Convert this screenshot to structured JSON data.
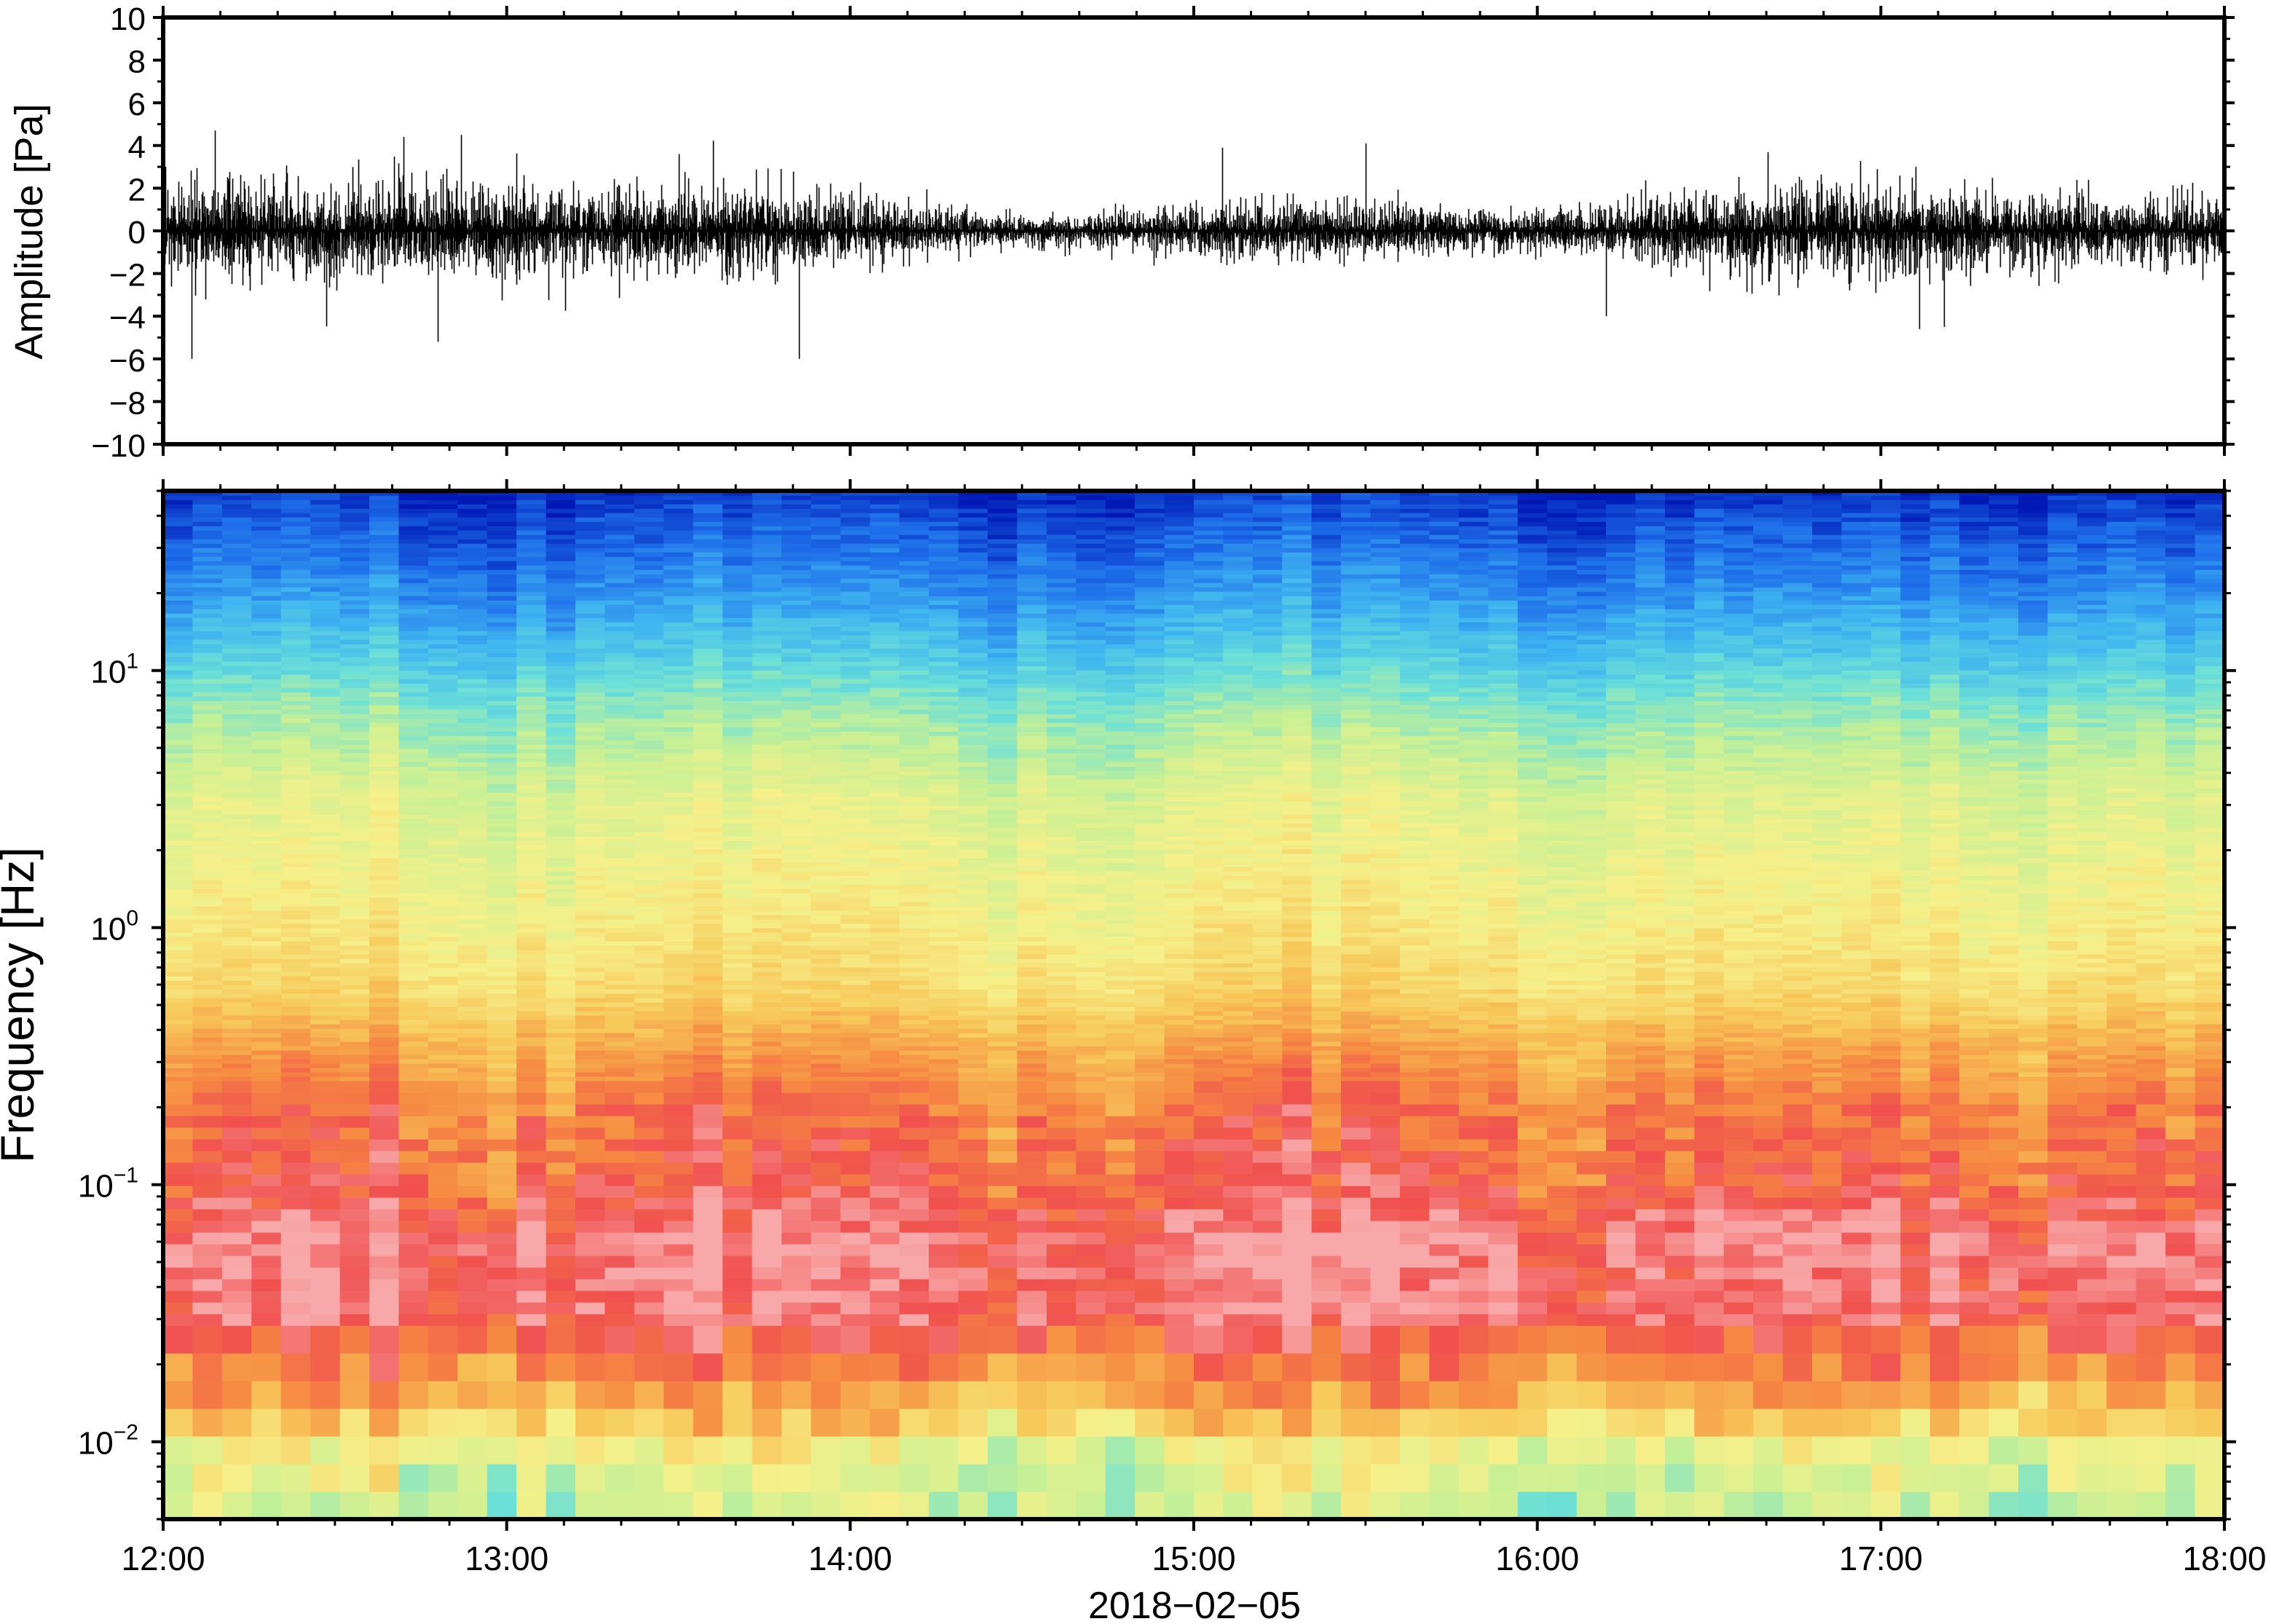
{
  "chart_data": [
    {
      "type": "line",
      "panel": "waveform",
      "ylabel": "Amplitude [Pa]",
      "ylim": [
        -10,
        10
      ],
      "yticks": [
        10,
        8,
        6,
        4,
        2,
        0,
        -2,
        -4,
        -6,
        -8,
        -10
      ],
      "ytick_labels": [
        "10",
        "8",
        "6",
        "4",
        "2",
        "0",
        "−2",
        "−4",
        "−6",
        "−8",
        "−10"
      ],
      "x_range": [
        "2018-02-05T12:00",
        "2018-02-05T18:00"
      ],
      "series": [
        {
          "values_summary": "dense infrasound trace centered on 0 Pa, typical envelope about ±2 Pa",
          "peaks": [
            {
              "time": "2018-02-05T12:05",
              "value": -6
            },
            {
              "time": "2018-02-05T12:09",
              "value": 4.7
            },
            {
              "time": "2018-02-05T12:42",
              "value": 4.4
            },
            {
              "time": "2018-02-05T12:48",
              "value": -5.2
            },
            {
              "time": "2018-02-05T12:52",
              "value": 4.5
            },
            {
              "time": "2018-02-05T13:30",
              "value": 3.6
            },
            {
              "time": "2018-02-05T13:51",
              "value": -6
            },
            {
              "time": "2018-02-05T15:05",
              "value": 3.9
            },
            {
              "time": "2018-02-05T15:30",
              "value": 4.1
            },
            {
              "time": "2018-02-05T16:12",
              "value": -4
            },
            {
              "time": "2018-02-05T17:06",
              "value": 3
            },
            {
              "time": "2018-02-05T17:11",
              "value": -4.5
            }
          ]
        }
      ]
    },
    {
      "type": "heatmap",
      "panel": "spectrogram",
      "ylabel": "Frequency [Hz]",
      "yscale": "log",
      "ylim": [
        0.005,
        50
      ],
      "yticks": [
        10,
        1,
        0.1,
        0.01
      ],
      "ytick_labels": [
        {
          "base": "10",
          "exp": "1"
        },
        {
          "base": "10",
          "exp": "0"
        },
        {
          "base": "10",
          "exp": "−1"
        },
        {
          "base": "10",
          "exp": "−2"
        }
      ],
      "xlabel": "2018−02−05",
      "categories": [
        "12:00",
        "13:00",
        "14:00",
        "15:00",
        "16:00",
        "17:00",
        "18:00"
      ],
      "x": [
        "2018-02-05T12:00",
        "2018-02-05T13:00",
        "2018-02-05T14:00",
        "2018-02-05T15:00",
        "2018-02-05T16:00",
        "2018-02-05T17:00",
        "2018-02-05T18:00"
      ],
      "colormap": [
        "#0018b4",
        "#1e6eea",
        "#3fb4f0",
        "#6be0d8",
        "#c8f094",
        "#f6f08a",
        "#f7c85a",
        "#f68c42",
        "#f0504e",
        "#f8a8a8"
      ],
      "color_band_summary": [
        {
          "freq_hz": [
            20,
            50
          ],
          "level": "lowest power (dark blue)"
        },
        {
          "freq_hz": [
            7,
            20
          ],
          "level": "low power (blue to cyan)"
        },
        {
          "freq_hz": [
            1,
            7
          ],
          "level": "medium (green-yellow)"
        },
        {
          "freq_hz": [
            0.3,
            1
          ],
          "level": "medium-high (yellow to orange)"
        },
        {
          "freq_hz": [
            0.1,
            0.3
          ],
          "level": "high (red)"
        },
        {
          "freq_hz": [
            0.025,
            0.1
          ],
          "level": "highest (pink)"
        },
        {
          "freq_hz": [
            0.012,
            0.025
          ],
          "level": "high (red-orange)"
        },
        {
          "freq_hz": [
            0.005,
            0.012
          ],
          "level": "medium (yellow-green)"
        }
      ]
    }
  ]
}
